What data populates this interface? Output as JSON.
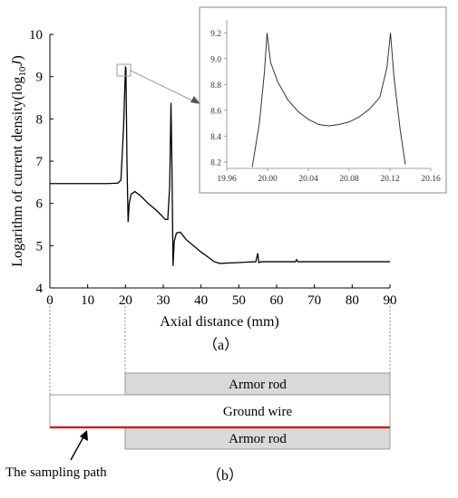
{
  "chart_data": [
    {
      "type": "line",
      "panel_label": "（a）",
      "xlabel": "Axial distance (mm)",
      "ylabel_prefix": "Logarithm of current density(log",
      "ylabel_sub": "10",
      "ylabel_var": "J",
      "ylabel_suffix": ")",
      "xlim": [
        0,
        90
      ],
      "ylim": [
        4,
        10
      ],
      "xticks": [
        0,
        10,
        20,
        30,
        40,
        50,
        60,
        70,
        80,
        90
      ],
      "yticks": [
        4,
        5,
        6,
        7,
        8,
        9,
        10
      ],
      "grid": false,
      "series": [
        {
          "points": [
            [
              0,
              6.47
            ],
            [
              5,
              6.47
            ],
            [
              10,
              6.47
            ],
            [
              15,
              6.47
            ],
            [
              18,
              6.48
            ],
            [
              18.8,
              6.55
            ],
            [
              19.5,
              7.8
            ],
            [
              20.0,
              9.22
            ],
            [
              20.12,
              9.2
            ],
            [
              20.4,
              7.0
            ],
            [
              20.7,
              5.56
            ],
            [
              21.0,
              6.0
            ],
            [
              21.5,
              6.22
            ],
            [
              22.5,
              6.28
            ],
            [
              24,
              6.18
            ],
            [
              26,
              6.0
            ],
            [
              28,
              5.85
            ],
            [
              29.5,
              5.72
            ],
            [
              30.5,
              5.62
            ],
            [
              31.2,
              5.62
            ],
            [
              31.7,
              6.4
            ],
            [
              32.05,
              8.38
            ],
            [
              32.3,
              6.9
            ],
            [
              32.6,
              4.52
            ],
            [
              32.9,
              5.1
            ],
            [
              33.5,
              5.3
            ],
            [
              34.5,
              5.32
            ],
            [
              36,
              5.15
            ],
            [
              38,
              5.0
            ],
            [
              40,
              4.85
            ],
            [
              42,
              4.72
            ],
            [
              43.5,
              4.62
            ],
            [
              45,
              4.58
            ],
            [
              47,
              4.59
            ],
            [
              50,
              4.6
            ],
            [
              52,
              4.61
            ],
            [
              54.5,
              4.62
            ],
            [
              55,
              4.82
            ],
            [
              55.3,
              4.6
            ],
            [
              56,
              4.62
            ],
            [
              58,
              4.62
            ],
            [
              65,
              4.62
            ],
            [
              65.3,
              4.67
            ],
            [
              65.6,
              4.62
            ],
            [
              70,
              4.62
            ],
            [
              75,
              4.62
            ],
            [
              80,
              4.62
            ],
            [
              85,
              4.62
            ],
            [
              90,
              4.62
            ]
          ]
        }
      ],
      "annotations": [
        "zoom-box-around-peak-at-20mm"
      ]
    },
    {
      "type": "line",
      "role": "inset",
      "xlim": [
        19.96,
        20.16
      ],
      "ylim": [
        8.15,
        9.3
      ],
      "xticks": [
        "19.96",
        "20.00",
        "20.04",
        "20.08",
        "20.12",
        "20.16"
      ],
      "yticks": [
        "8.2",
        "8.4",
        "8.6",
        "8.8",
        "9.0",
        "9.2"
      ],
      "series": [
        {
          "points": [
            [
              19.985,
              8.16
            ],
            [
              19.992,
              8.5
            ],
            [
              19.997,
              8.9
            ],
            [
              19.9995,
              9.2
            ],
            [
              20.003,
              8.97
            ],
            [
              20.01,
              8.82
            ],
            [
              20.02,
              8.68
            ],
            [
              20.03,
              8.59
            ],
            [
              20.04,
              8.53
            ],
            [
              20.05,
              8.49
            ],
            [
              20.06,
              8.48
            ],
            [
              20.07,
              8.49
            ],
            [
              20.08,
              8.51
            ],
            [
              20.09,
              8.55
            ],
            [
              20.1,
              8.61
            ],
            [
              20.11,
              8.7
            ],
            [
              20.117,
              8.93
            ],
            [
              20.1205,
              9.2
            ],
            [
              20.124,
              8.85
            ],
            [
              20.13,
              8.45
            ],
            [
              20.135,
              8.18
            ]
          ]
        }
      ]
    }
  ],
  "diagram": {
    "panel_label": "（b）",
    "top_rod_label": "Armor rod",
    "wire_label": "Ground wire",
    "bottom_rod_label": "Armor rod",
    "path_label": "The sampling path",
    "path_color": "#e00000",
    "rod_fill": "#d9d9d9"
  }
}
